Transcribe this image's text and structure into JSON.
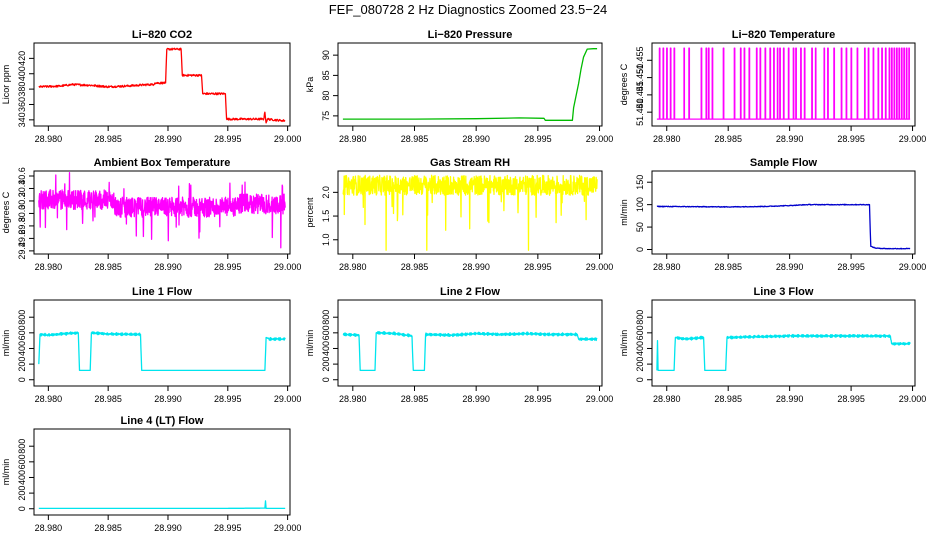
{
  "figure": {
    "title": "FEF_080728  2 Hz Diagnostics Zoomed 23.5−24"
  },
  "chart_data": [
    {
      "type": "line",
      "title": "Li−820 CO2",
      "ylabel": "Licor ppm",
      "color": "#ff0000",
      "x_ticks": [
        "28.980",
        "28.985",
        "28.990",
        "28.995",
        "29.000"
      ],
      "y_ticks": [
        "340",
        "360",
        "380",
        "400",
        "420"
      ],
      "xlim": [
        28.9788,
        29.0002
      ],
      "ylim": [
        332,
        440
      ],
      "series": [
        {
          "x": [
            28.9792,
            28.981,
            28.982,
            28.9835,
            28.985,
            28.9865,
            28.9875,
            28.9885,
            28.9888,
            28.9889,
            28.9898,
            28.9899,
            28.9911,
            28.9912,
            28.9928,
            28.9929,
            28.9948,
            28.9949,
            28.998,
            28.9981,
            28.9982,
            28.9983,
            28.9995,
            28.9998
          ],
          "y": [
            383,
            384,
            386,
            385,
            383,
            384,
            385,
            386,
            386,
            388,
            388,
            432,
            432,
            398,
            398,
            374,
            374,
            341,
            341,
            350,
            336,
            341,
            339,
            339
          ]
        }
      ]
    },
    {
      "type": "line",
      "title": "Li−820 Pressure",
      "ylabel": "kPa",
      "color": "#00bb00",
      "x_ticks": [
        "28.980",
        "28.985",
        "28.990",
        "28.995",
        "29.000"
      ],
      "y_ticks": [
        "75",
        "80",
        "85",
        "90"
      ],
      "xlim": [
        28.9788,
        29.0002
      ],
      "ylim": [
        72.5,
        93
      ],
      "series": [
        {
          "x": [
            28.9792,
            28.985,
            28.99,
            28.9935,
            28.9955,
            28.9956,
            28.9978,
            28.9979,
            28.9983,
            28.9985,
            28.9987,
            28.999,
            28.9995,
            28.9998
          ],
          "y": [
            74.2,
            74.2,
            74.3,
            74.5,
            74.4,
            73.9,
            73.9,
            77.0,
            83.0,
            86.5,
            89.5,
            91.5,
            91.6,
            91.6
          ]
        }
      ]
    },
    {
      "type": "line",
      "title": "Li−820 Temperature",
      "ylabel": "degrees C",
      "color": "#ff00ff",
      "x_ticks": [
        "28.980",
        "28.985",
        "28.990",
        "28.995",
        "29.000"
      ],
      "y_ticks": [
        "51.440",
        "51.445",
        "51.450",
        "51.455"
      ],
      "xlim": [
        28.9788,
        29.0002
      ],
      "ylim": [
        51.436,
        51.46
      ]
    },
    {
      "type": "line",
      "title": "Ambient Box Temperature",
      "ylabel": "degrees C",
      "color": "#ff00ff",
      "x_ticks": [
        "28.980",
        "28.985",
        "28.990",
        "28.995",
        "29.000"
      ],
      "y_ticks": [
        "29.4",
        "29.6",
        "29.8",
        "30.0",
        "30.2",
        "30.4",
        "30.6"
      ],
      "xlim": [
        28.9788,
        29.0002
      ],
      "ylim": [
        29.35,
        30.68
      ]
    },
    {
      "type": "line",
      "title": "Gas Stream RH",
      "ylabel": "percent",
      "color": "#ffff00",
      "x_ticks": [
        "28.980",
        "28.985",
        "28.990",
        "28.995",
        "29.000"
      ],
      "y_ticks": [
        "1.0",
        "1.5",
        "2.0"
      ],
      "xlim": [
        28.9788,
        29.0002
      ],
      "ylim": [
        0.7,
        2.45
      ]
    },
    {
      "type": "line",
      "title": "Sample Flow",
      "ylabel": "ml/min",
      "color": "#0000cc",
      "x_ticks": [
        "28.980",
        "28.985",
        "28.990",
        "28.995",
        "29.000"
      ],
      "y_ticks": [
        "0",
        "50",
        "100",
        "150"
      ],
      "xlim": [
        28.9788,
        29.0002
      ],
      "ylim": [
        -10,
        175
      ],
      "series": [
        {
          "x": [
            28.9792,
            28.985,
            28.988,
            28.99,
            28.9915,
            28.9935,
            28.9965,
            28.9966,
            28.9968,
            28.997,
            28.998,
            28.9998
          ],
          "y": [
            96,
            95,
            96,
            98,
            100,
            100,
            100,
            7,
            5,
            3,
            2,
            2
          ]
        }
      ]
    },
    {
      "type": "line",
      "title": "Line 1 Flow",
      "ylabel": "ml/min",
      "color": "#00e5ee",
      "x_ticks": [
        "28.980",
        "28.985",
        "28.990",
        "28.995",
        "29.000"
      ],
      "y_ticks": [
        "0",
        "200",
        "400",
        "600",
        "800"
      ],
      "xlim": [
        28.9788,
        29.0002
      ],
      "ylim": [
        -80,
        1020
      ],
      "series": [
        {
          "x": [
            28.9792,
            28.9793,
            28.98,
            28.981,
            28.9825,
            28.9826,
            28.9835,
            28.9836,
            28.985,
            28.9877,
            28.9878,
            28.9981,
            28.9982,
            28.9985,
            28.9998
          ],
          "y": [
            200,
            580,
            570,
            585,
            600,
            120,
            120,
            600,
            585,
            580,
            120,
            120,
            540,
            520,
            520
          ]
        }
      ]
    },
    {
      "type": "line",
      "title": "Line 2 Flow",
      "ylabel": "ml/min",
      "color": "#00e5ee",
      "x_ticks": [
        "28.980",
        "28.985",
        "28.990",
        "28.995",
        "29.000"
      ],
      "y_ticks": [
        "0",
        "200",
        "400",
        "600",
        "800"
      ],
      "xlim": [
        28.9788,
        29.0002
      ],
      "ylim": [
        -80,
        1020
      ],
      "series": [
        {
          "x": [
            28.9792,
            28.9805,
            28.9806,
            28.9818,
            28.9819,
            28.9835,
            28.9848,
            28.9849,
            28.9858,
            28.9859,
            28.988,
            28.99,
            28.992,
            28.994,
            28.996,
            28.9982,
            28.9983,
            28.9998
          ],
          "y": [
            580,
            570,
            120,
            120,
            600,
            590,
            560,
            120,
            120,
            580,
            570,
            590,
            580,
            590,
            580,
            580,
            520,
            520
          ]
        }
      ]
    },
    {
      "type": "line",
      "title": "Line 3 Flow",
      "ylabel": "ml/min",
      "color": "#00e5ee",
      "x_ticks": [
        "28.980",
        "28.985",
        "28.990",
        "28.995",
        "29.000"
      ],
      "y_ticks": [
        "0",
        "200",
        "400",
        "600",
        "800"
      ],
      "xlim": [
        28.9788,
        29.0002
      ],
      "ylim": [
        -80,
        1020
      ],
      "series": [
        {
          "x": [
            28.9792,
            28.97925,
            28.9793,
            28.9806,
            28.9807,
            28.9815,
            28.983,
            28.9831,
            28.9848,
            28.9849,
            28.987,
            28.99,
            28.994,
            28.9982,
            28.9983,
            28.9998
          ],
          "y": [
            120,
            500,
            120,
            120,
            540,
            520,
            540,
            120,
            120,
            540,
            550,
            560,
            560,
            560,
            460,
            460
          ]
        }
      ]
    },
    {
      "type": "line",
      "title": "Line 4 (LT) Flow",
      "ylabel": "ml/min",
      "color": "#00e5ee",
      "x_ticks": [
        "28.980",
        "28.985",
        "28.990",
        "28.995",
        "29.000"
      ],
      "y_ticks": [
        "0",
        "200",
        "400",
        "600",
        "800"
      ],
      "xlim": [
        28.9788,
        29.0002
      ],
      "ylim": [
        -80,
        1020
      ],
      "series": [
        {
          "x": [
            28.9792,
            28.995,
            28.9981,
            28.99815,
            28.9982,
            28.9998
          ],
          "y": [
            5,
            5,
            8,
            100,
            5,
            5
          ]
        }
      ]
    }
  ]
}
